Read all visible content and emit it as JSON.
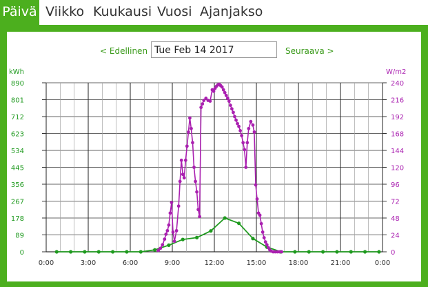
{
  "tabs": [
    {
      "label": "Päivä",
      "active": true
    },
    {
      "label": "Viikko",
      "active": false
    },
    {
      "label": "Kuukausi",
      "active": false
    },
    {
      "label": "Vuosi",
      "active": false
    },
    {
      "label": "Ajanjakso",
      "active": false
    }
  ],
  "nav": {
    "prev_label": "< Edellinen",
    "date_value": "Tue Feb 14 2017",
    "next_label": "Seuraava >"
  },
  "colors": {
    "accent": "#4caf1e",
    "energy": "#1f9a1f",
    "irradiance": "#aa20b0"
  },
  "chart_data": {
    "type": "line",
    "x_ticks": [
      "0:00",
      "3:00",
      "6:00",
      "9:00",
      "12:00",
      "15:00",
      "18:00",
      "21:00",
      "0:00"
    ],
    "y_left": {
      "label": "kWh",
      "ticks": [
        0,
        89,
        178,
        267,
        356,
        445,
        534,
        623,
        712,
        801,
        890
      ],
      "ylim": [
        0,
        890
      ]
    },
    "y_right": {
      "label": "W/m2",
      "ticks": [
        0,
        24,
        48,
        72,
        96,
        120,
        144,
        168,
        192,
        216,
        240
      ],
      "ylim": [
        0,
        240
      ]
    },
    "grid": true,
    "series": [
      {
        "axis": "left",
        "x": [
          0.75,
          1.75,
          2.75,
          3.75,
          4.75,
          5.75,
          6.75,
          7.75,
          8.75,
          9.75,
          10.75,
          11.75,
          12.75,
          13.75,
          14.75,
          15.75,
          16.75,
          17.75,
          18.75,
          19.75,
          20.75,
          21.75,
          22.75,
          23.75
        ],
        "values": [
          0,
          0,
          0,
          0,
          0,
          0,
          0,
          10,
          35,
          65,
          75,
          110,
          178,
          150,
          70,
          25,
          0,
          0,
          0,
          0,
          0,
          0,
          0,
          0
        ]
      },
      {
        "axis": "right",
        "x": [
          8.0,
          8.15,
          8.3,
          8.45,
          8.55,
          8.65,
          8.75,
          8.85,
          8.95,
          9.05,
          9.15,
          9.3,
          9.45,
          9.55,
          9.65,
          9.75,
          9.85,
          9.95,
          10.05,
          10.15,
          10.25,
          10.35,
          10.45,
          10.55,
          10.65,
          10.75,
          10.85,
          10.95,
          11.05,
          11.15,
          11.25,
          11.4,
          11.55,
          11.7,
          11.85,
          11.95,
          12.05,
          12.15,
          12.25,
          12.35,
          12.45,
          12.55,
          12.65,
          12.75,
          12.85,
          12.95,
          13.05,
          13.15,
          13.25,
          13.35,
          13.45,
          13.55,
          13.65,
          13.75,
          13.85,
          13.95,
          14.05,
          14.15,
          14.25,
          14.35,
          14.45,
          14.6,
          14.75,
          14.85,
          14.95,
          15.05,
          15.15,
          15.25,
          15.35,
          15.45,
          15.55,
          15.65,
          15.75,
          15.85,
          15.95,
          16.05,
          16.2,
          16.35,
          16.5,
          16.65,
          16.8
        ],
        "values": [
          2,
          5,
          10,
          18,
          25,
          30,
          38,
          55,
          70,
          28,
          15,
          30,
          65,
          100,
          130,
          110,
          105,
          130,
          150,
          170,
          190,
          175,
          155,
          120,
          100,
          85,
          60,
          50,
          205,
          210,
          215,
          218,
          215,
          214,
          230,
          228,
          232,
          235,
          237,
          238,
          236,
          234,
          230,
          226,
          222,
          218,
          214,
          208,
          203,
          198,
          192,
          187,
          182,
          178,
          172,
          165,
          155,
          145,
          120,
          155,
          175,
          185,
          180,
          170,
          95,
          75,
          55,
          52,
          40,
          28,
          20,
          14,
          10,
          6,
          3,
          1,
          0,
          0,
          0,
          0,
          0
        ]
      }
    ]
  }
}
